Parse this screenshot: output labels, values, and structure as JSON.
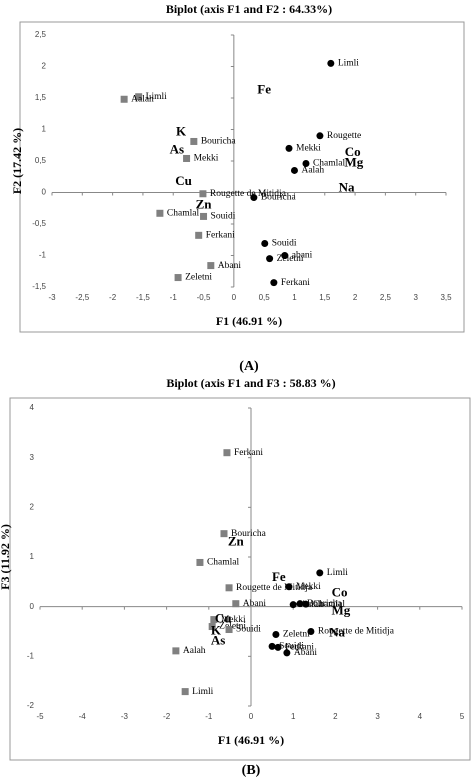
{
  "chart_data": [
    {
      "type": "scatter",
      "title": "Biplot (axis F1 and F2 : 64.33%)",
      "xlabel": "F1 (46.91 %)",
      "ylabel": "F2 (17.42 %)",
      "caption": "(A)",
      "xlim": [
        -3,
        3.5
      ],
      "xticks": [
        -3,
        {
          "value": -2.5,
          "label": "-2,5"
        },
        -2,
        {
          "value": -1.5,
          "label": "-1,5"
        },
        -1,
        {
          "value": -0.5,
          "label": "-0,5"
        },
        0,
        {
          "value": 0.5,
          "label": "0,5"
        },
        1,
        {
          "value": 1.5,
          "label": "1,5"
        },
        2,
        {
          "value": 2.5,
          "label": "2,5"
        },
        3,
        {
          "value": 3.5,
          "label": "3,5"
        }
      ],
      "ylim": [
        -1.5,
        2.5
      ],
      "yticks": [
        {
          "value": -1.5,
          "label": "-1,5"
        },
        -1,
        {
          "value": -0.5,
          "label": "-0,5"
        },
        0,
        {
          "value": 0.5,
          "label": "0,5"
        },
        1,
        {
          "value": 1.5,
          "label": "1,5"
        },
        2,
        {
          "value": 2.5,
          "label": "2,5"
        }
      ],
      "series": [
        {
          "color": "#808080",
          "marker": "square",
          "labels": [
            "Limli",
            "Aalah",
            "Bouricha",
            "Mekki",
            "Rougette de Mitidja",
            "Chamlal",
            "Souidi",
            "Ferkani",
            "Abani",
            "Zeletni"
          ],
          "x": [
            -1.57,
            -1.81,
            -0.66,
            -0.78,
            -0.51,
            -1.22,
            -0.5,
            -0.58,
            -0.38,
            -0.92
          ],
          "y": [
            1.52,
            1.48,
            0.81,
            0.54,
            -0.02,
            -0.33,
            -0.38,
            -0.68,
            -1.16,
            -1.35
          ]
        },
        {
          "color": "#000000",
          "marker": "circle",
          "labels": [
            "Limli",
            "Rougette",
            "Mekki",
            "Chamlal",
            "Aalah",
            "Bouricha",
            "Souidi",
            "Zeletni",
            "abani",
            "Ferkani"
          ],
          "x": [
            1.6,
            1.42,
            0.91,
            1.19,
            1.0,
            0.33,
            0.51,
            0.59,
            0.84,
            0.66
          ],
          "y": [
            2.05,
            0.9,
            0.7,
            0.46,
            0.35,
            -0.08,
            -0.81,
            -1.05,
            -1.0,
            -1.43
          ]
        }
      ],
      "variables": {
        "labels": [
          "Fe",
          "K",
          "As",
          "Cu",
          "Zn",
          "Co",
          "Mg",
          "Na"
        ],
        "x": [
          0.5,
          -0.87,
          -0.94,
          -0.83,
          -0.5,
          1.96,
          1.98,
          1.86
        ],
        "y": [
          1.62,
          0.95,
          0.67,
          0.17,
          -0.21,
          0.63,
          0.46,
          0.06
        ]
      }
    },
    {
      "type": "scatter",
      "title": "Biplot (axis F1 and F3 : 58.83 %)",
      "xlabel": "F1 (46.91 %)",
      "ylabel": "F3 (11.92 %)",
      "caption": "(B)",
      "xlim": [
        -5,
        5
      ],
      "xticks": [
        -5,
        -4,
        -3,
        -2,
        -1,
        0,
        1,
        2,
        3,
        4,
        5
      ],
      "ylim": [
        -2,
        4
      ],
      "yticks": [
        -2,
        -1,
        0,
        1,
        2,
        3,
        4
      ],
      "series": [
        {
          "color": "#808080",
          "marker": "square",
          "labels": [
            "Ferkani",
            "Bouricha",
            "Chamlal",
            "Rougette de Mitidja",
            "Abani",
            "Mekki",
            "Zeletni",
            "Souidi",
            "Aalah",
            "Limli"
          ],
          "x": [
            -0.57,
            -0.64,
            -1.21,
            -0.52,
            -0.36,
            -0.88,
            -0.92,
            -0.52,
            -1.78,
            -1.56
          ],
          "y": [
            3.1,
            1.47,
            0.89,
            0.38,
            0.06,
            -0.26,
            -0.4,
            -0.46,
            -0.89,
            -1.71
          ]
        },
        {
          "color": "#000000",
          "marker": "circle",
          "labels": [
            "Limli",
            "Mekki",
            "Bouricha",
            "Aalah",
            "Chamlal",
            "Rougette de Mitidja",
            "Zeletni",
            "Souidi",
            "Ferkani",
            "Abani"
          ],
          "x": [
            1.63,
            0.9,
            1.16,
            1.0,
            1.3,
            1.42,
            0.59,
            0.5,
            0.64,
            0.85
          ],
          "y": [
            0.68,
            0.4,
            0.06,
            0.04,
            0.05,
            -0.5,
            -0.56,
            -0.8,
            -0.82,
            -0.93
          ]
        }
      ],
      "variables": {
        "labels": [
          "Zn",
          "Fe",
          "Co",
          "Mg",
          "Na",
          "Cu",
          "K",
          "As"
        ],
        "x": [
          -0.36,
          0.66,
          2.1,
          2.13,
          2.04,
          -0.66,
          -0.83,
          -0.78
        ],
        "y": [
          1.29,
          0.58,
          0.26,
          -0.1,
          -0.54,
          -0.26,
          -0.5,
          -0.7
        ]
      }
    }
  ]
}
